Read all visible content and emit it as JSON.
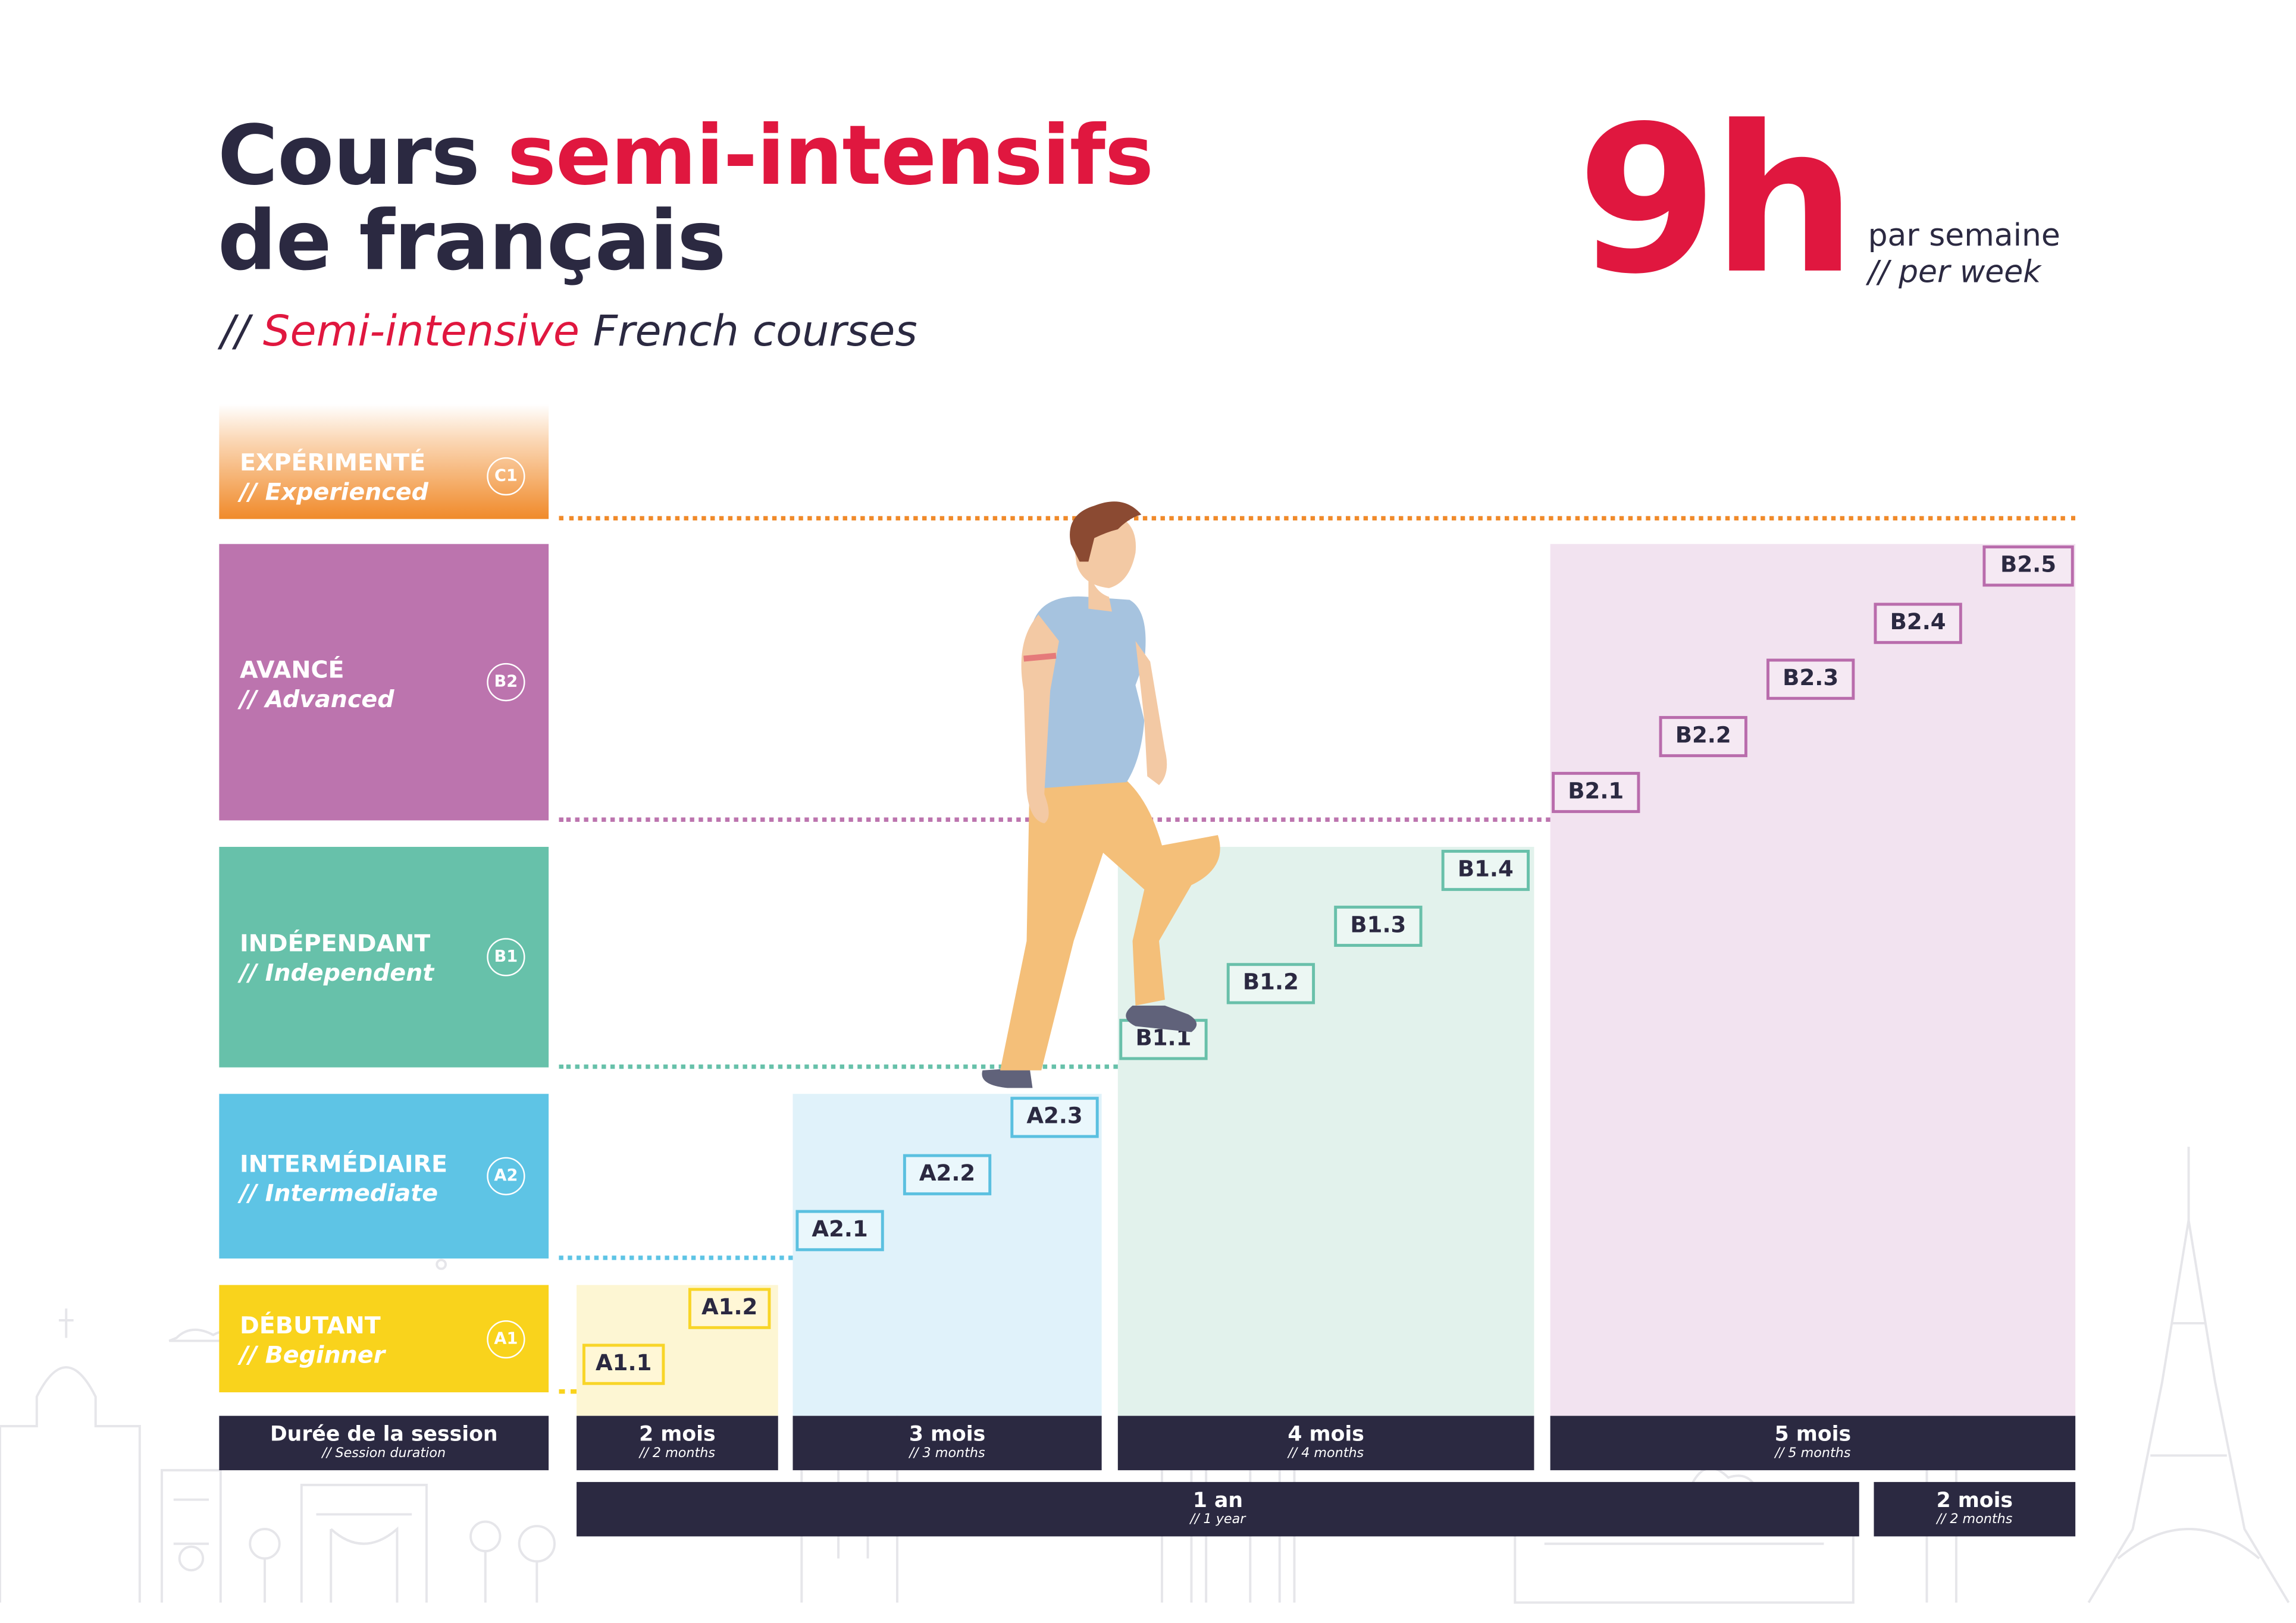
{
  "header": {
    "title_part1": "Cours ",
    "title_highlight": "semi-intensifs",
    "title_line2": "de français",
    "subtitle_prefix": "// ",
    "subtitle_highlight": "Semi-intensive",
    "subtitle_rest": " French courses",
    "hours": "9h",
    "per_week_fr": "par semaine",
    "per_week_en": "// per week"
  },
  "levels": [
    {
      "fr": "EXPÉRIMENTÉ",
      "en": "// Experienced",
      "code": "C1",
      "color": "#f08a2a"
    },
    {
      "fr": "AVANCÉ",
      "en": "// Advanced",
      "code": "B2",
      "color": "#bc74ae"
    },
    {
      "fr": "INDÉPENDANT",
      "en": "// Independent",
      "code": "B1",
      "color": "#67c1aa"
    },
    {
      "fr": "INTERMÉDIAIRE",
      "en": "// Intermediate",
      "code": "A2",
      "color": "#5ec4e5"
    },
    {
      "fr": "DÉBUTANT",
      "en": "// Beginner",
      "code": "A1",
      "color": "#f9d31c"
    }
  ],
  "steps": {
    "a1": [
      "A1.1",
      "A1.2"
    ],
    "a2": [
      "A2.1",
      "A2.2",
      "A2.3"
    ],
    "b1": [
      "B1.1",
      "B1.2",
      "B1.3",
      "B1.4"
    ],
    "b2": [
      "B2.1",
      "B2.2",
      "B2.3",
      "B2.4",
      "B2.5"
    ]
  },
  "durations": {
    "header_fr": "Durée de la session",
    "header_en": "// Session duration",
    "a1_fr": "2 mois",
    "a1_en": "// 2 months",
    "a2_fr": "3 mois",
    "a2_en": "// 3 months",
    "b1_fr": "4 mois",
    "b1_en": "// 4 months",
    "b2_fr": "5 mois",
    "b2_en": "// 5 months",
    "year_fr": "1 an",
    "year_en": "// 1 year",
    "extra_fr": "2 mois",
    "extra_en": "// 2 months"
  },
  "colors": {
    "navy": "#2b2941",
    "red": "#e0173f",
    "yellow": "#f9d31c",
    "blue": "#5ec4e5",
    "green": "#67c1aa",
    "violet": "#bc74ae",
    "orange": "#f08a2a"
  },
  "illustration": {
    "figure": "person-climbing-stairs",
    "background": "paris-skyline-outline"
  }
}
